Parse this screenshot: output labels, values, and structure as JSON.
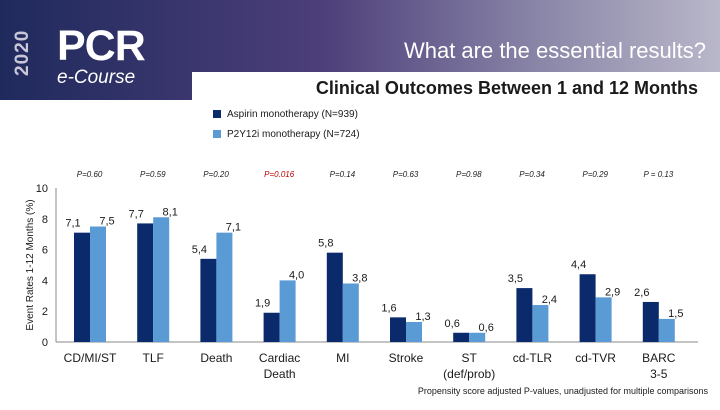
{
  "slide": {
    "year": "2020",
    "logo_main": "PCR",
    "logo_sub": "e-Course",
    "title": "What are the essential results?",
    "footnote": "Propensity score adjusted P-values, unadjusted for multiple comparisons"
  },
  "colors": {
    "aspirin": "#0b2a6b",
    "p2y12": "#5b9bd5"
  },
  "legend": {
    "aspirin": "Aspirin monotherapy (N=939)",
    "p2y12": "P2Y12i monotherapy (N=724)"
  },
  "chart_data": {
    "type": "bar",
    "title": "Clinical Outcomes Between 1 and 12 Months",
    "ylabel": "Event Rates 1-12 Months (%)",
    "xlabel": "",
    "ylim": [
      0,
      10
    ],
    "yticks": [
      "0",
      "2",
      "4",
      "6",
      "8",
      "10"
    ],
    "categories": [
      "CD/MI/ST",
      "TLF",
      "Death",
      "Cardiac Death",
      "MI",
      "Stroke",
      "ST (def/prob)",
      "cd-TLR",
      "cd-TVR",
      "BARC 3-5"
    ],
    "p_values": [
      "P=0.60",
      "P=0.59",
      "P=0.20",
      "P=0.016",
      "P=0.14",
      "P=0.63",
      "P=0.98",
      "P=0.34",
      "P=0.29",
      "P = 0.13"
    ],
    "significant": [
      false,
      false,
      false,
      true,
      false,
      false,
      false,
      false,
      false,
      false
    ],
    "series": [
      {
        "name": "Aspirin monotherapy (N=939)",
        "values": [
          7.1,
          7.7,
          5.4,
          1.9,
          5.8,
          1.6,
          0.6,
          3.5,
          4.4,
          2.6
        ],
        "labels": [
          "7,1",
          "7,7",
          "5,4",
          "1,9",
          "5,8",
          "1,6",
          "0,6",
          "3,5",
          "4,4",
          "2,6"
        ]
      },
      {
        "name": "P2Y12i monotherapy (N=724)",
        "values": [
          7.5,
          8.1,
          7.1,
          4.0,
          3.8,
          1.3,
          0.6,
          2.4,
          2.9,
          1.5
        ],
        "labels": [
          "7,5",
          "8,1",
          "7,1",
          "4,0",
          "3,8",
          "1,3",
          "0,6",
          "2,4",
          "2,9",
          "1,5"
        ]
      }
    ]
  }
}
